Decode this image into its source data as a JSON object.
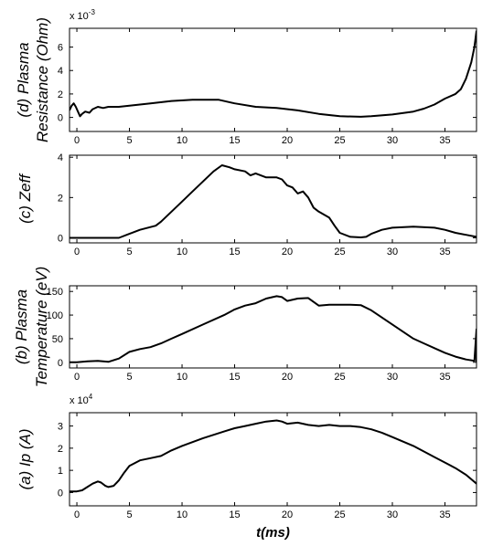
{
  "chart_data": [
    {
      "type": "line",
      "panel": "d",
      "ylabel_lines": [
        "(d) Plasma",
        "Resistance (Ohm)"
      ],
      "multiplier_base": "x 10",
      "multiplier_exp": "-3",
      "xlim": [
        -0.7,
        38
      ],
      "ylim": [
        -1.2,
        7.6
      ],
      "xticks": [
        0,
        5,
        10,
        15,
        20,
        25,
        30,
        35
      ],
      "yticks": [
        0,
        2,
        4,
        6
      ],
      "xtick_labels": [
        "0",
        "5",
        "10",
        "15",
        "20",
        "25",
        "30",
        "35"
      ],
      "ytick_labels": [
        "0",
        "2",
        "4",
        "6"
      ],
      "x": [
        -0.7,
        -0.5,
        -0.3,
        -0.1,
        0.1,
        0.3,
        0.5,
        0.8,
        1.2,
        1.5,
        2,
        2.5,
        3,
        4,
        5,
        7,
        9,
        11,
        13,
        13.5,
        15,
        17,
        19,
        21,
        23,
        25,
        27,
        28,
        30,
        32,
        33,
        34,
        35,
        36,
        36.5,
        37,
        37.5,
        37.8,
        38
      ],
      "y": [
        0.6,
        1.0,
        1.2,
        0.9,
        0.5,
        0.1,
        0.3,
        0.5,
        0.4,
        0.7,
        0.9,
        0.8,
        0.9,
        0.9,
        1.0,
        1.2,
        1.4,
        1.5,
        1.5,
        1.5,
        1.2,
        0.9,
        0.8,
        0.6,
        0.3,
        0.1,
        0.05,
        0.1,
        0.25,
        0.5,
        0.75,
        1.1,
        1.6,
        2.0,
        2.4,
        3.3,
        4.7,
        6.0,
        7.4
      ]
    },
    {
      "type": "line",
      "panel": "c",
      "ylabel_lines": [
        "(c) Zeff"
      ],
      "multiplier_base": "",
      "multiplier_exp": "",
      "xlim": [
        -0.7,
        38
      ],
      "ylim": [
        -0.25,
        4.1
      ],
      "xticks": [
        0,
        5,
        10,
        15,
        20,
        25,
        30,
        35
      ],
      "yticks": [
        0,
        2,
        4
      ],
      "xtick_labels": [
        "0",
        "5",
        "10",
        "15",
        "20",
        "25",
        "30",
        "35"
      ],
      "ytick_labels": [
        "0",
        "2",
        "4"
      ],
      "x": [
        -0.7,
        0,
        4,
        5,
        6,
        7.5,
        8,
        9,
        10,
        11,
        12,
        13,
        13.8,
        14.5,
        15,
        16,
        16.5,
        17,
        18,
        19,
        19.5,
        20,
        20.5,
        21,
        21.5,
        22,
        22.5,
        23,
        24,
        24.5,
        25,
        26,
        27,
        27.5,
        28,
        29,
        30,
        32,
        34,
        35,
        36,
        37,
        38
      ],
      "y": [
        0,
        0,
        0,
        0.2,
        0.4,
        0.6,
        0.8,
        1.3,
        1.8,
        2.3,
        2.8,
        3.3,
        3.6,
        3.5,
        3.4,
        3.3,
        3.1,
        3.2,
        3.0,
        3.0,
        2.9,
        2.6,
        2.5,
        2.2,
        2.3,
        2.0,
        1.5,
        1.3,
        1.0,
        0.6,
        0.25,
        0.05,
        0.02,
        0.05,
        0.2,
        0.4,
        0.5,
        0.55,
        0.5,
        0.4,
        0.25,
        0.15,
        0.05
      ]
    },
    {
      "type": "line",
      "panel": "b",
      "ylabel_lines": [
        "(b) Plasma",
        "Temperature (eV)"
      ],
      "multiplier_base": "",
      "multiplier_exp": "",
      "xlim": [
        -0.7,
        38
      ],
      "ylim": [
        -12,
        162
      ],
      "xticks": [
        0,
        5,
        10,
        15,
        20,
        25,
        30,
        35
      ],
      "yticks": [
        0,
        50,
        100,
        150
      ],
      "xtick_labels": [
        "0",
        "5",
        "10",
        "15",
        "20",
        "25",
        "30",
        "35"
      ],
      "ytick_labels": [
        "0",
        "50",
        "100",
        "150"
      ],
      "x": [
        -0.7,
        0,
        1,
        2,
        3,
        4,
        5,
        6,
        7,
        8,
        9,
        10,
        12,
        14,
        15,
        16,
        17,
        18,
        19,
        19.5,
        20,
        21,
        22,
        23,
        24,
        25,
        26,
        27,
        28,
        29,
        30,
        31,
        32,
        33,
        34,
        35,
        36,
        37,
        37.8,
        38,
        38
      ],
      "y": [
        0,
        0,
        2,
        3,
        1,
        8,
        22,
        28,
        32,
        40,
        50,
        60,
        80,
        100,
        112,
        120,
        125,
        135,
        140,
        138,
        130,
        135,
        136,
        120,
        122,
        122,
        122,
        121,
        110,
        95,
        80,
        65,
        50,
        40,
        30,
        20,
        12,
        6,
        3,
        70,
        0
      ]
    },
    {
      "type": "line",
      "panel": "a",
      "ylabel_lines": [
        "(a) Ip (A)"
      ],
      "xlabel": "t(ms)",
      "multiplier_base": "x 10",
      "multiplier_exp": "4",
      "xlim": [
        -0.7,
        38
      ],
      "ylim": [
        -0.6,
        3.6
      ],
      "xticks": [
        0,
        5,
        10,
        15,
        20,
        25,
        30,
        35
      ],
      "yticks": [
        0,
        1,
        2,
        3
      ],
      "xtick_labels": [
        "0",
        "5",
        "10",
        "15",
        "20",
        "25",
        "30",
        "35"
      ],
      "ytick_labels": [
        "0",
        "1",
        "2",
        "3"
      ],
      "x": [
        -0.7,
        0,
        0.5,
        1,
        1.5,
        2,
        2.3,
        2.7,
        3,
        3.5,
        4,
        4.5,
        5,
        6,
        7,
        8,
        9,
        10,
        12,
        14,
        15,
        16,
        17,
        18,
        19,
        19.5,
        20,
        21,
        22,
        23,
        24,
        25,
        26,
        27,
        28,
        29,
        30,
        31,
        32,
        33,
        34,
        35,
        36,
        37,
        38
      ],
      "y": [
        0.05,
        0.05,
        0.1,
        0.25,
        0.4,
        0.5,
        0.45,
        0.3,
        0.25,
        0.3,
        0.55,
        0.9,
        1.2,
        1.45,
        1.55,
        1.65,
        1.9,
        2.1,
        2.45,
        2.75,
        2.9,
        3.0,
        3.1,
        3.2,
        3.25,
        3.2,
        3.1,
        3.15,
        3.05,
        3.0,
        3.05,
        3.0,
        3.0,
        2.95,
        2.85,
        2.7,
        2.5,
        2.3,
        2.1,
        1.85,
        1.6,
        1.35,
        1.1,
        0.8,
        0.4
      ]
    }
  ]
}
